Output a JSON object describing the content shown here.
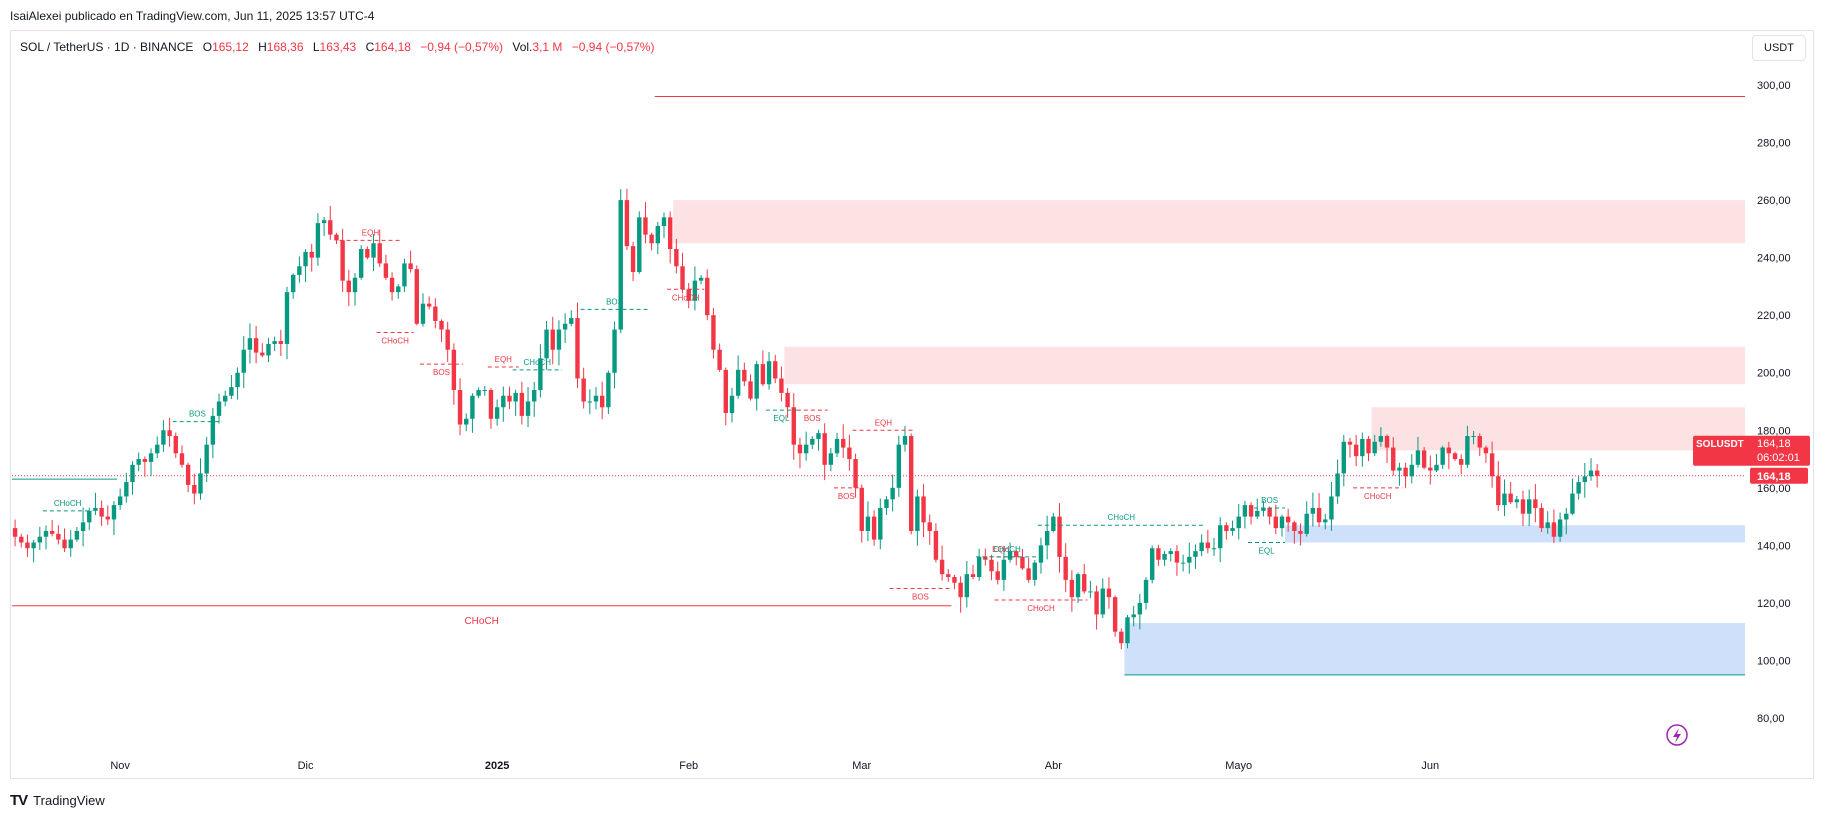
{
  "header": {
    "attribution": "IsaiAlexei publicado en TradingView.com, Jun 11, 2025 13:57 UTC-4"
  },
  "legend": {
    "symbol": "SOL / TetherUS · 1D · BINANCE",
    "o_label": "O",
    "o_value": "165,12",
    "h_label": "H",
    "h_value": "168,36",
    "l_label": "L",
    "l_value": "163,43",
    "c_label": "C",
    "c_value": "164,18",
    "change": "−0,94 (−0,57%)",
    "vol_label": "Vol.",
    "vol_value": "3,1 M",
    "vol_change": "−0,94 (−0,57%)"
  },
  "currency": "USDT",
  "footer": {
    "brand": "TradingView",
    "logo": "TV"
  },
  "colors": {
    "up": "#089981",
    "down": "#f23645",
    "demand": "#cfe0fb",
    "supply": "#fde2e4",
    "dotted": "#f23645"
  },
  "chart_data": {
    "type": "candlestick",
    "symbol": "SOLUSDT",
    "y_ticks": [
      "300,00",
      "280,00",
      "260,00",
      "240,00",
      "220,00",
      "200,00",
      "180,00",
      "160,00",
      "140,00",
      "120,00",
      "100,00",
      "80,00"
    ],
    "y_tick_values": [
      300,
      280,
      260,
      240,
      220,
      200,
      180,
      160,
      140,
      120,
      100,
      80
    ],
    "ylim": [
      77,
      307
    ],
    "x_ticks": [
      {
        "label": "Nov",
        "bar": 17
      },
      {
        "label": "Dic",
        "bar": 47
      },
      {
        "label": "2025",
        "bar": 78
      },
      {
        "label": "Feb",
        "bar": 109
      },
      {
        "label": "Mar",
        "bar": 137
      },
      {
        "label": "Abr",
        "bar": 168
      },
      {
        "label": "Mayo",
        "bar": 198
      },
      {
        "label": "Jun",
        "bar": 229
      }
    ],
    "x_tick_bold": "2025",
    "last_price": {
      "label": "SOLUSDT",
      "value": "164,18",
      "countdown": "06:02:01",
      "value2": "164,18",
      "y": 164.18
    },
    "closes": [
      143,
      141,
      139,
      141,
      143,
      145,
      144,
      142,
      139,
      142,
      145,
      148,
      152,
      153,
      150,
      149,
      154,
      157,
      162,
      168,
      170,
      169,
      172,
      175,
      180,
      178,
      172,
      168,
      161,
      158,
      165,
      175,
      185,
      190,
      192,
      195,
      200,
      208,
      212,
      207,
      206,
      210,
      211,
      210,
      228,
      234,
      237,
      242,
      240,
      252,
      253,
      248,
      246,
      232,
      228,
      233,
      243,
      240,
      245,
      238,
      233,
      228,
      230,
      238,
      236,
      217,
      224,
      223,
      218,
      215,
      208,
      194,
      182,
      184,
      192,
      194,
      194,
      184,
      188,
      192,
      190,
      193,
      185,
      190,
      194,
      205,
      215,
      208,
      215,
      217,
      219,
      198,
      190,
      190,
      192,
      188,
      200,
      215,
      260,
      244,
      235,
      254,
      248,
      245,
      251,
      254,
      243,
      237,
      229,
      225,
      232,
      233,
      220,
      208,
      201,
      186,
      192,
      201,
      197,
      191,
      203,
      196,
      204,
      198,
      193,
      188,
      175,
      172,
      175,
      177,
      179,
      168,
      172,
      177,
      174,
      170,
      160,
      145,
      150,
      142,
      153,
      156,
      160,
      175,
      178,
      145,
      157,
      148,
      145,
      135,
      130,
      129,
      127,
      122,
      130,
      129,
      136,
      135,
      131,
      128,
      135,
      138,
      136,
      132,
      128,
      134,
      140,
      145,
      150,
      136,
      128,
      122,
      130,
      124,
      124,
      116,
      125,
      122,
      110,
      106,
      115,
      116,
      120,
      128,
      139,
      135,
      137,
      138,
      134,
      134,
      136,
      138,
      141,
      139,
      139,
      147,
      145,
      146,
      150,
      154,
      150,
      152,
      153,
      150,
      146,
      150,
      148,
      145,
      144,
      151,
      153,
      148,
      149,
      157,
      165,
      176,
      175,
      171,
      177,
      172,
      176,
      178,
      174,
      166,
      167,
      164,
      168,
      173,
      167,
      166,
      168,
      174,
      172,
      170,
      168,
      178,
      178,
      174,
      172,
      164,
      154,
      158,
      155,
      156,
      151,
      156,
      153,
      146,
      148,
      143,
      149,
      151,
      158,
      162,
      164,
      166,
      164.18
    ],
    "zones": [
      {
        "kind": "supply",
        "x_start": 107,
        "x_end": "end",
        "y_low": 245,
        "y_high": 260
      },
      {
        "kind": "supply",
        "x_start": 125,
        "x_end": "end",
        "y_low": 196,
        "y_high": 209
      },
      {
        "kind": "supply",
        "x_start": 220,
        "x_end": "end",
        "y_low": 173,
        "y_high": 188
      },
      {
        "kind": "demand",
        "x_start": 206,
        "x_end": "end",
        "y_low": 141,
        "y_high": 147
      },
      {
        "kind": "demand",
        "x_start": 180,
        "x_end": "end",
        "y_low": 95,
        "y_high": 113
      }
    ],
    "levels": [
      {
        "kind": "red-solid",
        "x_start": 104,
        "x_end": "end",
        "y": 296
      },
      {
        "kind": "red-solid",
        "x_start": 0,
        "x_end": 152,
        "y": 119
      },
      {
        "kind": "green-solid",
        "x_start": 180,
        "x_end": "end",
        "y": 95
      },
      {
        "kind": "green-solid",
        "x_start": 0,
        "x_end": 17,
        "y": 163
      }
    ],
    "structures": [
      {
        "label": "CHoCH",
        "side": "up",
        "x_start": 5,
        "x_end": 13,
        "y": 152,
        "label_pos": "above"
      },
      {
        "label": "BOS",
        "side": "up",
        "x_start": 26,
        "x_end": 34,
        "y": 183,
        "label_pos": "above"
      },
      {
        "label": "EQH",
        "side": "down",
        "x_start": 53,
        "x_end": 63,
        "y": 246,
        "label_pos": "above"
      },
      {
        "label": "CHoCH",
        "side": "down",
        "x_start": 59,
        "x_end": 65,
        "y": 214,
        "label_pos": "below"
      },
      {
        "label": "BOS",
        "side": "down",
        "x_start": 66,
        "x_end": 73,
        "y": 203,
        "label_pos": "below"
      },
      {
        "label": "EQH",
        "side": "down",
        "x_start": 77,
        "x_end": 82,
        "y": 202,
        "label_pos": "above"
      },
      {
        "label": "CHoCH",
        "side": "up",
        "x_start": 81,
        "x_end": 89,
        "y": 201,
        "label_pos": "above"
      },
      {
        "label": "BOS",
        "side": "up",
        "x_start": 92,
        "x_end": 103,
        "y": 222,
        "label_pos": "above"
      },
      {
        "label": "CHoCH",
        "side": "down",
        "x_start": 106,
        "x_end": 112,
        "y": 229,
        "label_pos": "below"
      },
      {
        "label": "EQL",
        "side": "up",
        "x_start": 122,
        "x_end": 127,
        "y": 187,
        "label_pos": "below"
      },
      {
        "label": "BOS",
        "side": "down",
        "x_start": 127,
        "x_end": 132,
        "y": 187,
        "label_pos": "below"
      },
      {
        "label": "EQH",
        "side": "down",
        "x_start": 136,
        "x_end": 146,
        "y": 180,
        "label_pos": "above"
      },
      {
        "label": "BOS",
        "side": "down",
        "x_start": 133,
        "x_end": 137,
        "y": 160,
        "label_pos": "below"
      },
      {
        "label": "BOS",
        "side": "down",
        "x_start": 142,
        "x_end": 152,
        "y": 125,
        "label_pos": "below"
      },
      {
        "label": "EQH",
        "side": "down",
        "x_start": 157,
        "x_end": 163,
        "y": 136,
        "label_pos": "above"
      },
      {
        "label": "CHoCH",
        "side": "up",
        "x_start": 156,
        "x_end": 166,
        "y": 136,
        "label_pos": "above"
      },
      {
        "label": "CHoCH",
        "side": "down",
        "x_start": 159,
        "x_end": 174,
        "y": 121,
        "label_pos": "below"
      },
      {
        "label": "CHoCH",
        "side": "up",
        "x_start": 166,
        "x_end": 193,
        "y": 147,
        "label_pos": "above"
      },
      {
        "label": "BOS",
        "side": "up",
        "x_start": 201,
        "x_end": 206,
        "y": 153,
        "label_pos": "above"
      },
      {
        "label": "EQL",
        "side": "up",
        "x_start": 200,
        "x_end": 206,
        "y": 141,
        "label_pos": "below"
      },
      {
        "label": "CHoCH",
        "side": "down",
        "x_start": 217,
        "x_end": 225,
        "y": 160,
        "label_pos": "below"
      },
      {
        "label": "CHoCH",
        "side": "down",
        "x_start": 0,
        "x_end": 152,
        "y": 119,
        "label_pos": "below-center"
      }
    ],
    "grid": false,
    "legend_placement": "top-left"
  }
}
